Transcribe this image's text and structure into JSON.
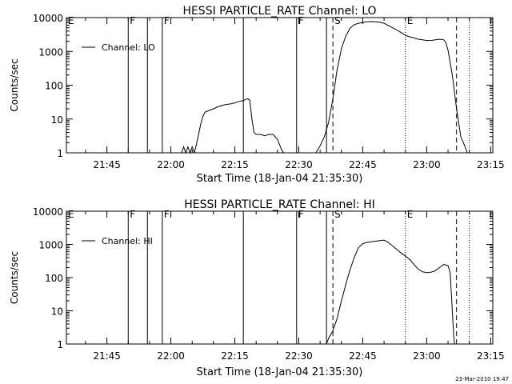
{
  "footer": {
    "timestamp": "23-Mar-2010 19:47"
  },
  "chart_data": [
    {
      "type": "line",
      "title": "HESSI PARTICLE_RATE Channel: LO",
      "xlabel": "Start Time (18-Jan-04 21:35:30)",
      "ylabel": "Counts/sec",
      "yscale": "log",
      "xlim_minutes_since_2130": [
        5.5,
        105.5
      ],
      "ylim": [
        1,
        10000
      ],
      "xticks": [
        "21:45",
        "22:00",
        "22:15",
        "22:30",
        "22:45",
        "23:00",
        "23:15"
      ],
      "yticks": [
        "1",
        "10",
        "100",
        "1000",
        "10000"
      ],
      "legend": {
        "placement": "top-left",
        "entries": [
          "Channel: LO"
        ]
      },
      "markers": [
        {
          "label": "E",
          "t": 5.5,
          "style": "none"
        },
        {
          "label": "F",
          "t": 20,
          "style": "solid"
        },
        {
          "label": "",
          "t": 24.5,
          "style": "solid"
        },
        {
          "label": "F",
          "t": 28,
          "style": "solid"
        },
        {
          "label": "",
          "t": 47,
          "style": "solid"
        },
        {
          "label": "F",
          "t": 59.5,
          "style": "solid"
        },
        {
          "label": "",
          "t": 66.5,
          "style": "solid"
        },
        {
          "label": "S",
          "t": 68,
          "style": "dashed"
        },
        {
          "label": "E",
          "t": 85,
          "style": "dotted"
        },
        {
          "label": "",
          "t": 97,
          "style": "dashed"
        },
        {
          "label": "",
          "t": 100,
          "style": "dotted"
        }
      ],
      "series": [
        {
          "name": "Channel: LO",
          "segments": [
            [
              [
                32.5,
                1
              ],
              [
                33,
                1.5
              ],
              [
                33.5,
                1
              ],
              [
                34,
                1.5
              ],
              [
                34.5,
                1
              ],
              [
                35,
                1.5
              ],
              [
                35.5,
                1
              ]
            ],
            [
              [
                35.5,
                1
              ],
              [
                36,
                1.8
              ],
              [
                36.5,
                3.5
              ],
              [
                37,
                7
              ],
              [
                37.5,
                12
              ],
              [
                38,
                16
              ],
              [
                39,
                18
              ],
              [
                40,
                20
              ],
              [
                41,
                23
              ],
              [
                42,
                25
              ],
              [
                43,
                27
              ],
              [
                44,
                28
              ],
              [
                45,
                30
              ],
              [
                46,
                33
              ],
              [
                47,
                35
              ],
              [
                47.5,
                38
              ],
              [
                48,
                40
              ],
              [
                48.5,
                36
              ],
              [
                49,
                10
              ],
              [
                49.5,
                4
              ]
            ],
            [
              [
                49.5,
                4
              ],
              [
                50,
                3.5
              ],
              [
                51,
                3.5
              ],
              [
                52,
                3.2
              ],
              [
                53,
                3.5
              ],
              [
                54,
                3.5
              ],
              [
                55,
                2.5
              ],
              [
                56,
                1.2
              ],
              [
                56.5,
                1
              ]
            ],
            [
              [
                64,
                1
              ],
              [
                65,
                1.6
              ],
              [
                66,
                3
              ],
              [
                67,
                8
              ],
              [
                68,
                40
              ],
              [
                69,
                300
              ],
              [
                70,
                1200
              ],
              [
                71,
                2800
              ],
              [
                72,
                4800
              ],
              [
                73,
                6200
              ],
              [
                74,
                6800
              ],
              [
                75,
                7200
              ],
              [
                76,
                7500
              ],
              [
                77,
                7600
              ],
              [
                78,
                7500
              ],
              [
                79,
                7300
              ],
              [
                80,
                6800
              ],
              [
                81,
                5800
              ],
              [
                82,
                5000
              ],
              [
                83,
                4300
              ],
              [
                84,
                3600
              ],
              [
                85,
                3000
              ],
              [
                86,
                2700
              ],
              [
                87,
                2500
              ],
              [
                88,
                2300
              ],
              [
                89,
                2200
              ],
              [
                90,
                2100
              ],
              [
                91,
                2100
              ],
              [
                92,
                2200
              ],
              [
                93,
                2300
              ],
              [
                94,
                2200
              ],
              [
                94.5,
                1800
              ],
              [
                95,
                1100
              ],
              [
                96,
                200
              ],
              [
                97,
                20
              ],
              [
                98,
                3
              ],
              [
                99,
                1.5
              ],
              [
                99.5,
                1
              ]
            ]
          ]
        }
      ]
    },
    {
      "type": "line",
      "title": "HESSI PARTICLE_RATE Channel: HI",
      "xlabel": "Start Time (18-Jan-04 21:35:30)",
      "ylabel": "Counts/sec",
      "yscale": "log",
      "xlim_minutes_since_2130": [
        5.5,
        105.5
      ],
      "ylim": [
        1,
        10000
      ],
      "xticks": [
        "21:45",
        "22:00",
        "22:15",
        "22:30",
        "22:45",
        "23:00",
        "23:15"
      ],
      "yticks": [
        "1",
        "10",
        "100",
        "1000",
        "10000"
      ],
      "legend": {
        "placement": "top-left",
        "entries": [
          "Channel: HI"
        ]
      },
      "markers": [
        {
          "label": "E",
          "t": 5.5,
          "style": "none"
        },
        {
          "label": "F",
          "t": 20,
          "style": "solid"
        },
        {
          "label": "",
          "t": 24.5,
          "style": "solid"
        },
        {
          "label": "F",
          "t": 28,
          "style": "solid"
        },
        {
          "label": "",
          "t": 47,
          "style": "solid"
        },
        {
          "label": "F",
          "t": 59.5,
          "style": "solid"
        },
        {
          "label": "",
          "t": 66.5,
          "style": "solid"
        },
        {
          "label": "S",
          "t": 68,
          "style": "dashed"
        },
        {
          "label": "E",
          "t": 85,
          "style": "dotted"
        },
        {
          "label": "",
          "t": 97,
          "style": "dashed"
        },
        {
          "label": "",
          "t": 100,
          "style": "dotted"
        }
      ],
      "series": [
        {
          "name": "Channel: HI",
          "segments": [
            [
              [
                66.5,
                1
              ],
              [
                67,
                1.5
              ],
              [
                68,
                2.5
              ],
              [
                69,
                6
              ],
              [
                70,
                20
              ],
              [
                71,
                60
              ],
              [
                72,
                170
              ],
              [
                73,
                400
              ],
              [
                74,
                800
              ],
              [
                75,
                1050
              ],
              [
                76,
                1150
              ],
              [
                77,
                1200
              ],
              [
                78,
                1250
              ],
              [
                79,
                1300
              ],
              [
                80,
                1350
              ],
              [
                81,
                1150
              ],
              [
                82,
                900
              ],
              [
                83,
                700
              ],
              [
                84,
                550
              ],
              [
                85,
                450
              ],
              [
                86,
                350
              ],
              [
                87,
                250
              ],
              [
                88,
                180
              ],
              [
                89,
                150
              ],
              [
                90,
                140
              ],
              [
                91,
                145
              ],
              [
                92,
                160
              ],
              [
                93,
                200
              ],
              [
                94,
                250
              ],
              [
                95,
                230
              ],
              [
                95.5,
                140
              ],
              [
                96,
                10
              ],
              [
                96.3,
                2
              ],
              [
                96.5,
                1
              ]
            ]
          ]
        }
      ]
    }
  ]
}
